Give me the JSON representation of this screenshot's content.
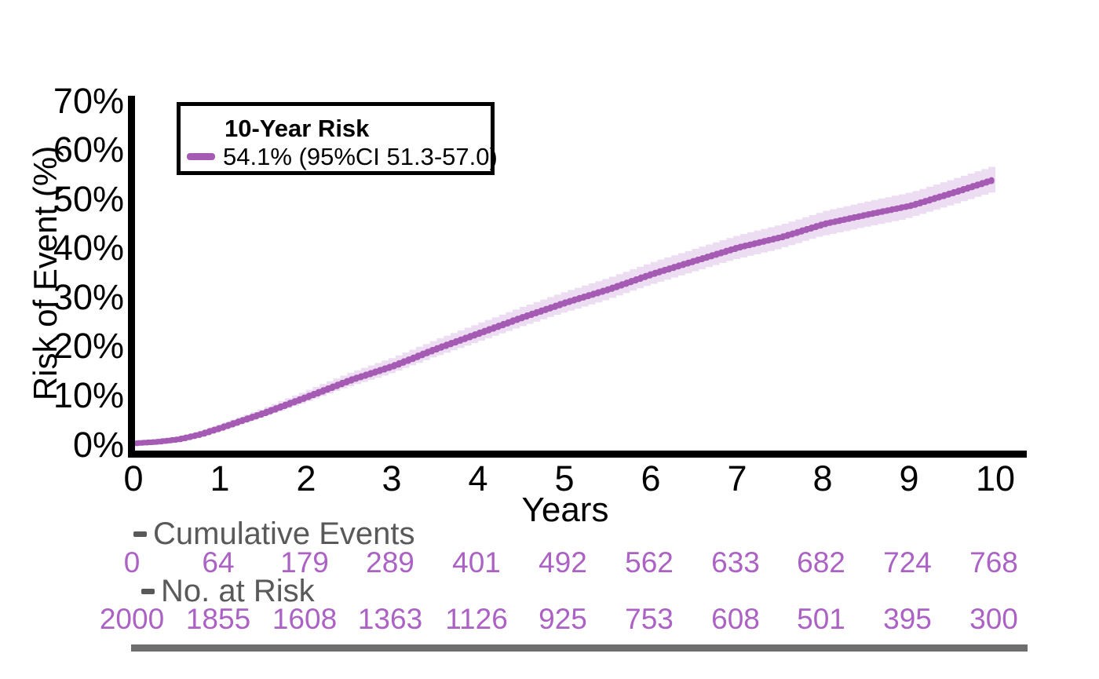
{
  "chart_data": {
    "type": "line",
    "subtype": "kaplan-meier-cumulative-incidence",
    "xlabel": "Years",
    "ylabel": "Risk of Event (%)",
    "xlim": [
      0,
      10
    ],
    "ylim_pct": [
      0,
      70
    ],
    "x_ticks": [
      "0",
      "1",
      "2",
      "3",
      "4",
      "5",
      "6",
      "7",
      "8",
      "9",
      "10"
    ],
    "y_ticks": [
      "0%",
      "10%",
      "20%",
      "30%",
      "40%",
      "50%",
      "60%",
      "70%"
    ],
    "grid": "off",
    "legend_position": "top-left",
    "series": [
      {
        "name": "10-Year Risk",
        "legend_label": "54.1% (95%CI 51.3-57.0)",
        "final_risk_pct": 54.1,
        "ci95": [
          51.3,
          57.0
        ],
        "anchor_years": [
          0,
          0.25,
          0.5,
          0.75,
          1,
          1.5,
          2,
          2.5,
          3,
          3.5,
          4,
          4.5,
          5,
          5.5,
          6,
          6.5,
          7,
          7.5,
          8,
          8.5,
          9,
          9.5,
          10
        ],
        "anchor_risk_pct": [
          0.2,
          0.5,
          1.0,
          2.0,
          3.4,
          6.4,
          9.7,
          13.1,
          16.0,
          19.5,
          22.7,
          25.9,
          28.9,
          31.6,
          34.7,
          37.4,
          40.1,
          42.2,
          44.9,
          46.8,
          48.6,
          51.3,
          54.1
        ],
        "ci_half_width_pct": [
          0.2,
          0.35,
          0.5,
          0.65,
          0.8,
          1.1,
          1.4,
          1.6,
          1.8,
          1.95,
          2.1,
          2.2,
          2.3,
          2.4,
          2.45,
          2.5,
          2.55,
          2.6,
          2.65,
          2.7,
          2.75,
          2.8,
          2.85
        ]
      }
    ],
    "tables": [
      {
        "label": "Cumulative Events",
        "values": [
          "0",
          "64",
          "179",
          "289",
          "401",
          "492",
          "562",
          "633",
          "682",
          "724",
          "768"
        ]
      },
      {
        "label": "No. at Risk",
        "values": [
          "2000",
          "1855",
          "1608",
          "1363",
          "1126",
          "925",
          "753",
          "608",
          "501",
          "395",
          "300"
        ]
      }
    ]
  },
  "legend": {
    "title": "10-Year Risk",
    "entry": "54.1% (95%CI 51.3-57.0)"
  },
  "colors": {
    "line": "#a55ab4",
    "band": "#ecddf2",
    "table_numbers": "#ab62c4",
    "gray_label": "#595959",
    "bottom_bar": "#6e6e6e",
    "axis": "#000000"
  }
}
